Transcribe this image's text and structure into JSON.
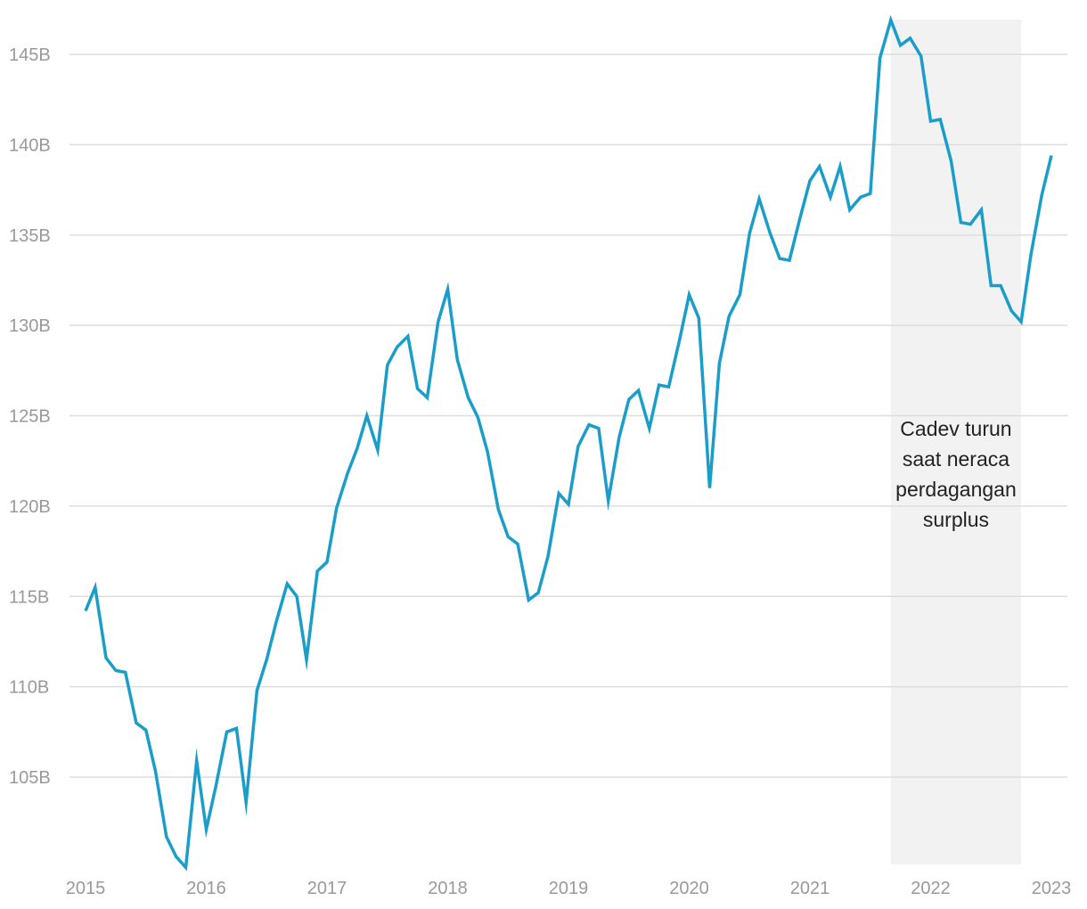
{
  "chart_data": {
    "type": "line",
    "title": "",
    "xlabel": "",
    "ylabel": "",
    "xlim": [
      2015.0,
      2023.0
    ],
    "ylim": [
      100,
      147
    ],
    "grid": true,
    "y_ticks": [
      {
        "value": 105,
        "label": "105B"
      },
      {
        "value": 110,
        "label": "110B"
      },
      {
        "value": 115,
        "label": "115B"
      },
      {
        "value": 120,
        "label": "120B"
      },
      {
        "value": 125,
        "label": "125B"
      },
      {
        "value": 130,
        "label": "130B"
      },
      {
        "value": 135,
        "label": "135B"
      },
      {
        "value": 140,
        "label": "140B"
      },
      {
        "value": 145,
        "label": "145B"
      }
    ],
    "x_ticks": [
      {
        "value": 2015,
        "label": "2015"
      },
      {
        "value": 2016,
        "label": "2016"
      },
      {
        "value": 2017,
        "label": "2017"
      },
      {
        "value": 2018,
        "label": "2018"
      },
      {
        "value": 2019,
        "label": "2019"
      },
      {
        "value": 2020,
        "label": "2020"
      },
      {
        "value": 2021,
        "label": "2021"
      },
      {
        "value": 2022,
        "label": "2022"
      },
      {
        "value": 2023,
        "label": "2023"
      }
    ],
    "series": [
      {
        "color": "#1b9dc9",
        "x": [
          2015.0,
          2015.08,
          2015.17,
          2015.25,
          2015.33,
          2015.42,
          2015.5,
          2015.58,
          2015.67,
          2015.75,
          2015.83,
          2015.92,
          2016.0,
          2016.08,
          2016.17,
          2016.25,
          2016.33,
          2016.42,
          2016.5,
          2016.58,
          2016.67,
          2016.75,
          2016.83,
          2016.92,
          2017.0,
          2017.08,
          2017.17,
          2017.25,
          2017.33,
          2017.42,
          2017.5,
          2017.58,
          2017.67,
          2017.75,
          2017.83,
          2017.92,
          2018.0,
          2018.08,
          2018.17,
          2018.25,
          2018.33,
          2018.42,
          2018.5,
          2018.58,
          2018.67,
          2018.75,
          2018.83,
          2018.92,
          2019.0,
          2019.08,
          2019.17,
          2019.25,
          2019.33,
          2019.42,
          2019.5,
          2019.58,
          2019.67,
          2019.75,
          2019.83,
          2019.92,
          2020.0,
          2020.08,
          2020.17,
          2020.25,
          2020.33,
          2020.42,
          2020.5,
          2020.58,
          2020.67,
          2020.75,
          2020.83,
          2020.92,
          2021.0,
          2021.08,
          2021.17,
          2021.25,
          2021.33,
          2021.42,
          2021.5,
          2021.58,
          2021.67,
          2021.75,
          2021.83,
          2021.92,
          2022.0,
          2022.08,
          2022.17,
          2022.25,
          2022.33,
          2022.42,
          2022.5,
          2022.58,
          2022.67,
          2022.75,
          2022.83,
          2022.92,
          2023.0
        ],
        "values": [
          114.2,
          115.5,
          111.6,
          110.9,
          110.8,
          108.0,
          107.6,
          105.3,
          101.7,
          100.6,
          100.0,
          105.9,
          102.1,
          104.5,
          107.5,
          107.7,
          103.6,
          109.8,
          111.5,
          113.6,
          115.7,
          115.0,
          111.5,
          116.4,
          116.9,
          119.9,
          121.8,
          123.2,
          125.0,
          123.1,
          127.8,
          128.8,
          129.4,
          126.5,
          126.0,
          130.2,
          132.0,
          128.1,
          126.0,
          124.9,
          123.0,
          119.8,
          118.3,
          117.9,
          114.8,
          115.2,
          117.2,
          120.7,
          120.1,
          123.3,
          124.5,
          124.3,
          120.3,
          123.8,
          125.9,
          126.4,
          124.3,
          126.7,
          126.6,
          129.2,
          131.7,
          130.4,
          121.0,
          127.9,
          130.5,
          131.7,
          135.1,
          137.0,
          135.1,
          133.7,
          133.6,
          136.0,
          138.0,
          138.8,
          137.1,
          138.8,
          136.4,
          137.1,
          137.3,
          144.8,
          146.9,
          145.5,
          145.9,
          144.9,
          141.3,
          141.4,
          139.1,
          135.7,
          135.6,
          136.4,
          132.2,
          132.2,
          130.8,
          130.2,
          133.9,
          137.2,
          139.4
        ]
      }
    ],
    "highlight": {
      "x_start": 2021.67,
      "x_end": 2022.75,
      "color": "#f2f2f2"
    },
    "annotation": {
      "lines": [
        "Cadev turun",
        "saat neraca",
        "perdagangan",
        "surplus"
      ]
    }
  }
}
